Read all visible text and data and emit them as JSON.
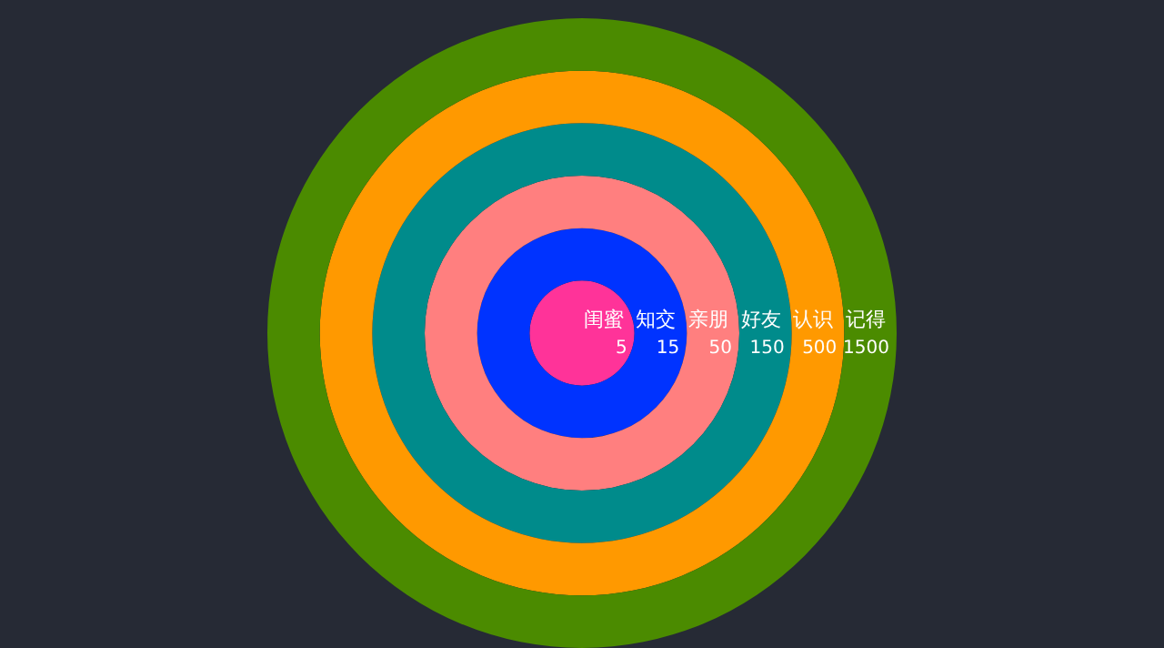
{
  "chart_data": {
    "type": "other",
    "categories": [
      "闺蜜",
      "知交",
      "亲朋",
      "好友",
      "认识",
      "记得"
    ],
    "values": [
      5,
      15,
      50,
      150,
      500,
      1500
    ],
    "colors": [
      "#ff3399",
      "#0033ff",
      "#ff7f7f",
      "#008b8b",
      "#ff9900",
      "#4b8b00"
    ],
    "data_labels": true
  }
}
